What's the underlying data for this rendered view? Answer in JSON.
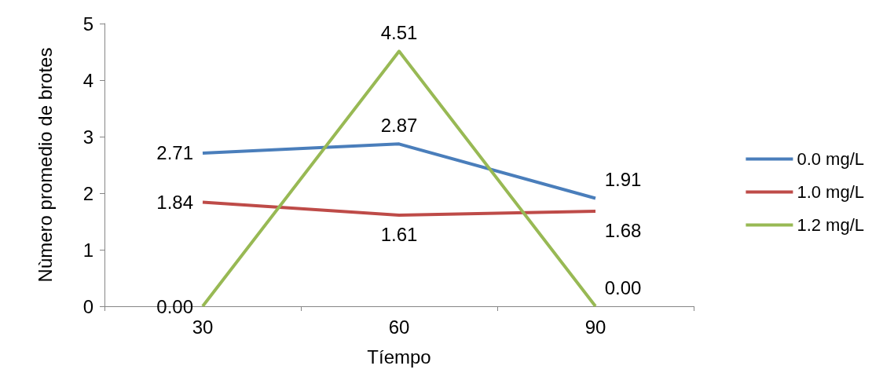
{
  "chart_data": {
    "type": "line",
    "xlabel": "Tíempo",
    "ylabel": "Nùmero promedio de brotes",
    "categories": [
      "30",
      "60",
      "90"
    ],
    "series": [
      {
        "name": "0.0 mg/L",
        "color": "#4a7ebb",
        "values": [
          2.71,
          2.87,
          1.91
        ],
        "value_labels": [
          "2.71",
          "2.87",
          "1.91"
        ]
      },
      {
        "name": "1.0 mg/L",
        "color": "#be4b48",
        "values": [
          1.84,
          1.61,
          1.68
        ],
        "value_labels": [
          "1.84",
          "1.61",
          "1.68"
        ]
      },
      {
        "name": "1.2 mg/L",
        "color": "#98b954",
        "values": [
          0,
          4.51,
          0
        ],
        "value_labels": [
          "0.00",
          "4.51",
          "0.00"
        ]
      }
    ],
    "ylim": [
      0,
      5
    ],
    "yticks": [
      0,
      1,
      2,
      3,
      4,
      5
    ],
    "grid": false,
    "legend": "right",
    "marker": "none",
    "line_style": "solid"
  }
}
